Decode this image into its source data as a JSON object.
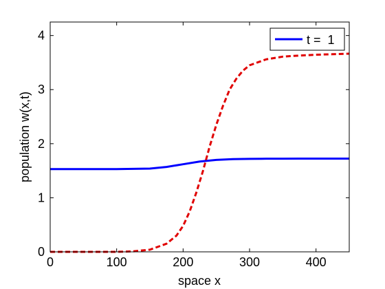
{
  "chart_data": {
    "type": "line",
    "xlabel": "space x",
    "ylabel": "population w(x,t)",
    "xlim": [
      0,
      450
    ],
    "ylim": [
      0,
      4.25
    ],
    "xticks": [
      0,
      100,
      200,
      300,
      400
    ],
    "yticks": [
      0,
      1,
      2,
      3,
      4
    ],
    "grid": false,
    "legend": {
      "placement": "top-right",
      "entries": [
        "t =  1"
      ]
    },
    "series": [
      {
        "name": "t =  1",
        "style": "solid",
        "color": "#0000ff",
        "x": [
          0,
          25,
          50,
          75,
          100,
          125,
          150,
          175,
          200,
          225,
          250,
          275,
          300,
          325,
          350,
          375,
          400,
          425,
          450
        ],
        "y": [
          1.53,
          1.53,
          1.53,
          1.53,
          1.53,
          1.535,
          1.54,
          1.57,
          1.62,
          1.67,
          1.7,
          1.715,
          1.72,
          1.722,
          1.723,
          1.724,
          1.724,
          1.725,
          1.725
        ]
      },
      {
        "style": "dashed",
        "color": "#e00000",
        "x": [
          0,
          50,
          100,
          125,
          150,
          175,
          190,
          200,
          210,
          220,
          230,
          240,
          250,
          260,
          270,
          280,
          290,
          300,
          325,
          350,
          375,
          400,
          425,
          450
        ],
        "y": [
          0,
          0,
          0,
          0.01,
          0.04,
          0.15,
          0.3,
          0.48,
          0.75,
          1.1,
          1.5,
          1.95,
          2.35,
          2.7,
          3.0,
          3.2,
          3.35,
          3.45,
          3.56,
          3.61,
          3.63,
          3.645,
          3.655,
          3.665
        ]
      }
    ]
  }
}
